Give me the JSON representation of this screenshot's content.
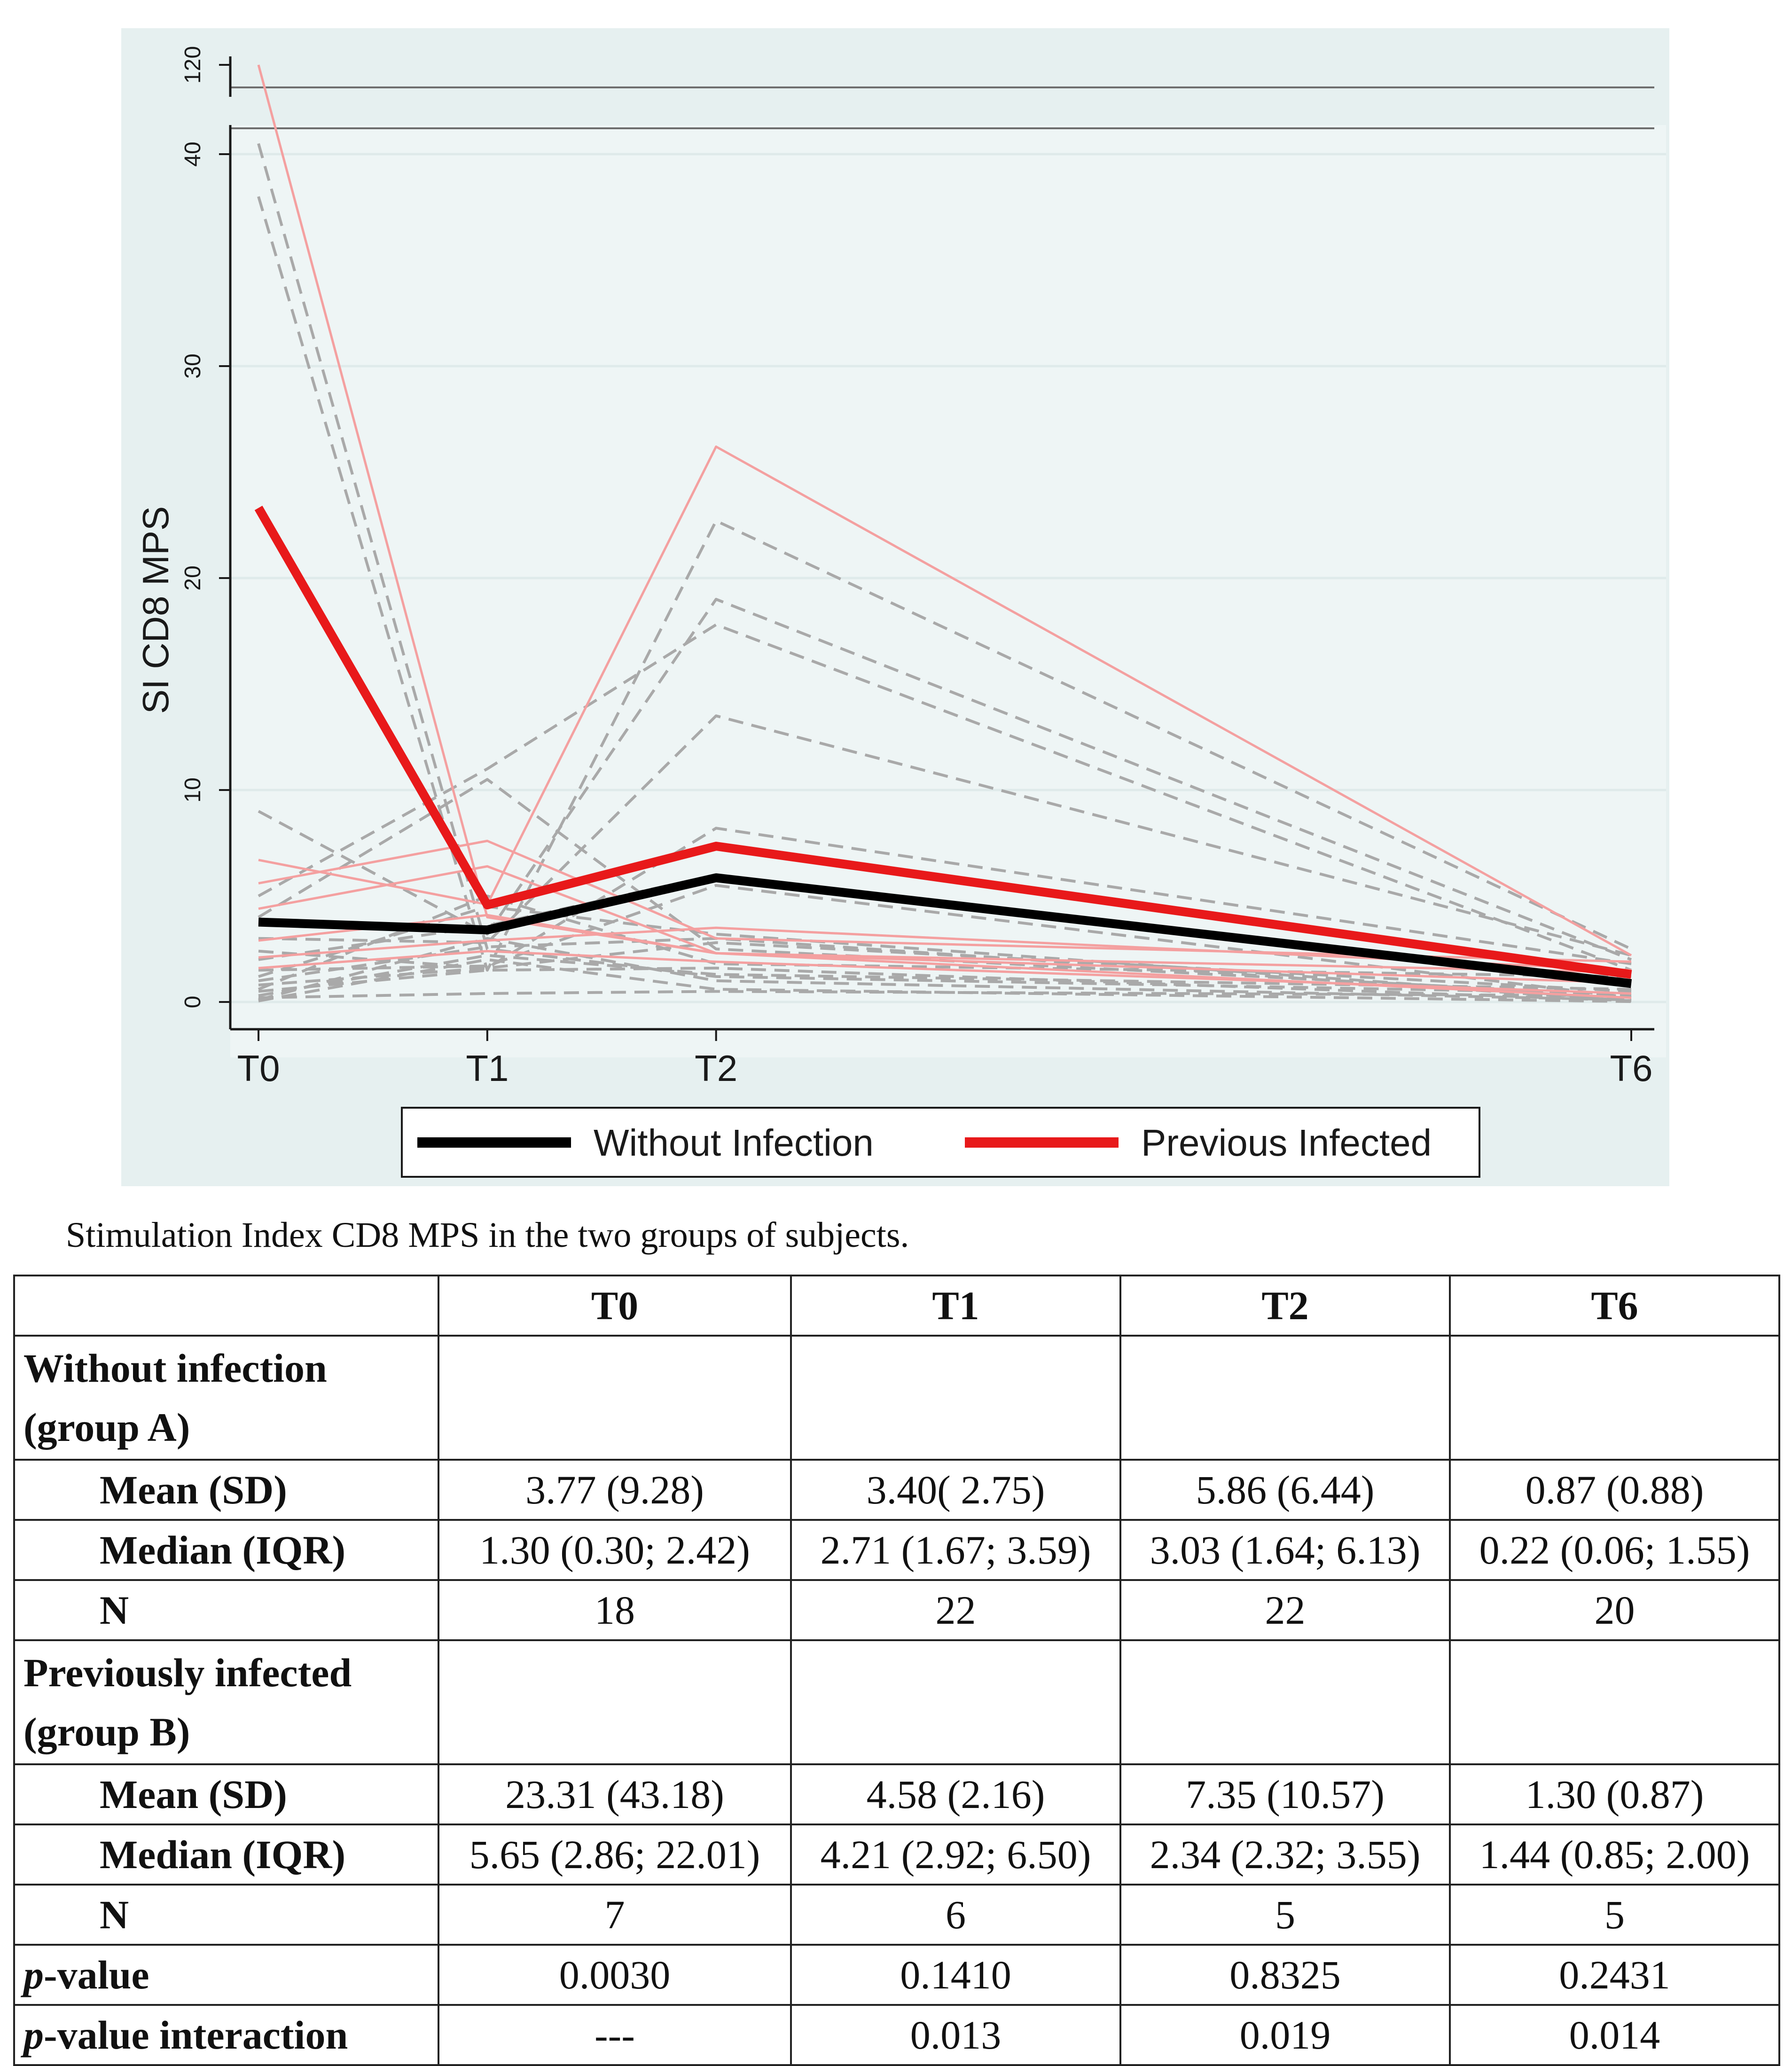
{
  "chart_data": {
    "type": "line",
    "ylabel": "SI CD8 MPS",
    "x": [
      "T0",
      "T1",
      "T2",
      "T6"
    ],
    "x_positions": [
      0,
      1,
      2,
      6
    ],
    "yticks": [
      0,
      10,
      20,
      30,
      40
    ],
    "ylim": [
      0,
      41
    ],
    "upper_panel_ytick": 120,
    "series": [
      {
        "name": "Without Infection",
        "values": [
          3.77,
          3.4,
          5.86,
          0.87
        ],
        "color": "#000000"
      },
      {
        "name": "Previous Infected",
        "values": [
          23.31,
          4.58,
          7.35,
          1.3
        ],
        "color": "#e8191a"
      }
    ],
    "individual_without_infection": [
      [
        40.5,
        2.5,
        1.2,
        0.4
      ],
      [
        38.0,
        1.5,
        22.7,
        2.5
      ],
      [
        9.0,
        3.2,
        19.0,
        2.0
      ],
      [
        5.0,
        11.0,
        17.8,
        1.5
      ],
      [
        4.0,
        10.5,
        2.5,
        0.3
      ],
      [
        3.0,
        2.8,
        13.5,
        2.2
      ],
      [
        2.4,
        1.6,
        8.2,
        1.8
      ],
      [
        2.0,
        3.6,
        6.0,
        0.9
      ],
      [
        1.5,
        1.7,
        5.5,
        0.2
      ],
      [
        1.2,
        4.5,
        3.2,
        0.1
      ],
      [
        1.0,
        2.6,
        3.0,
        0.05
      ],
      [
        0.8,
        1.6,
        2.8,
        0.5
      ],
      [
        0.6,
        5.0,
        1.8,
        1.2
      ],
      [
        0.5,
        1.5,
        1.6,
        0.06
      ],
      [
        0.3,
        2.2,
        1.3,
        0.6
      ],
      [
        0.2,
        0.4,
        0.5,
        0.3
      ],
      [
        0.1,
        3.0,
        1.0,
        0.1
      ],
      [
        0.05,
        2.0,
        0.6,
        0.02
      ]
    ],
    "individual_previous_infected": [
      [
        120,
        4.0,
        2.3,
        0.2
      ],
      [
        6.7,
        4.6,
        26.2,
        2.2
      ],
      [
        5.6,
        7.6,
        3.0,
        1.9
      ],
      [
        4.4,
        6.4,
        2.3,
        1.4
      ],
      [
        2.9,
        4.1,
        2.3,
        0.9
      ],
      [
        2.1,
        2.9,
        3.5,
        1.5
      ],
      [
        1.6,
        2.4,
        1.9,
        0.4
      ]
    ],
    "colors": {
      "without": "#000000",
      "previous": "#e8191a",
      "individual_without": "#a9a9a9",
      "individual_previous": "#f4a0a0"
    }
  },
  "caption": "Stimulation Index CD8 MPS in the two groups of subjects.",
  "table": {
    "headers": [
      "",
      "T0",
      "T1",
      "T2",
      "T6"
    ],
    "group_a": "Without infection (group A)",
    "group_b": "Previously infected (group B)",
    "labels": {
      "mean": "Mean (SD)",
      "median": "Median (IQR)",
      "n": "N",
      "p_italic": "p",
      "p_suffix": "-value",
      "pint_suffix": "-value interaction"
    },
    "a_mean": [
      "3.77 (9.28)",
      "3.40( 2.75)",
      "5.86 (6.44)",
      "0.87 (0.88)"
    ],
    "a_median": [
      "1.30 (0.30; 2.42)",
      "2.71 (1.67; 3.59)",
      "3.03 (1.64; 6.13)",
      "0.22 (0.06; 1.55)"
    ],
    "a_n": [
      "18",
      "22",
      "22",
      "20"
    ],
    "b_mean": [
      "23.31 (43.18)",
      "4.58 (2.16)",
      "7.35 (10.57)",
      "1.30 (0.87)"
    ],
    "b_median": [
      "5.65 (2.86; 22.01)",
      "4.21 (2.92; 6.50)",
      "2.34 (2.32; 3.55)",
      "1.44 (0.85; 2.00)"
    ],
    "b_n": [
      "7",
      "6",
      "5",
      "5"
    ],
    "p_value": [
      "0.0030",
      "0.1410",
      "0.8325",
      "0.2431"
    ],
    "p_interaction": [
      "---",
      "0.013",
      "0.019",
      "0.014"
    ]
  }
}
